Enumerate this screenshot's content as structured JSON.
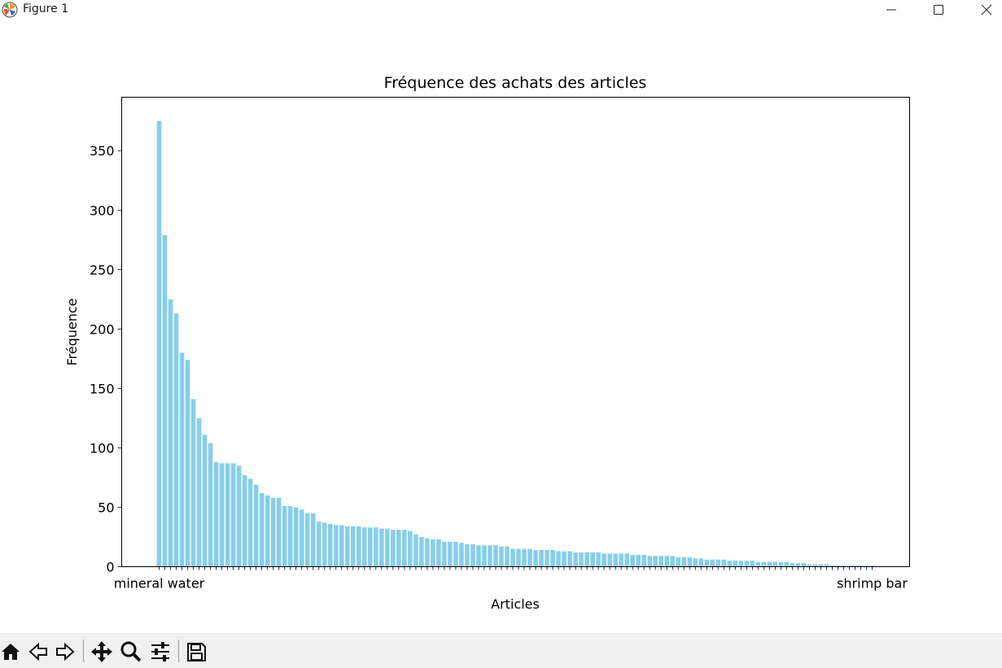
{
  "window": {
    "title": "Figure 1",
    "app_icon": "matplotlib-icon",
    "controls": [
      "minimize-icon",
      "maximize-icon",
      "close-icon"
    ]
  },
  "toolbar": {
    "buttons": [
      "home-icon",
      "back-icon",
      "forward-icon",
      "pan-icon",
      "zoom-icon",
      "configure-subplots-icon",
      "save-icon"
    ]
  },
  "chart_data": {
    "type": "bar",
    "title": "Fréquence des achats des articles",
    "xlabel": "Articles",
    "ylabel": "Fréquence",
    "ylim": [
      0,
      395
    ],
    "yticks": [
      0,
      50,
      100,
      150,
      200,
      250,
      300,
      350
    ],
    "bar_color": "#87ceeb",
    "grid": false,
    "legend": "none",
    "first_category": "mineral water",
    "last_category": "shrimp bar",
    "values": [
      375,
      279,
      225,
      213,
      180,
      174,
      141,
      125,
      111,
      104,
      88,
      87,
      87,
      87,
      85,
      77,
      74,
      69,
      62,
      60,
      58,
      58,
      51,
      51,
      50,
      48,
      45,
      45,
      38,
      37,
      36,
      35,
      35,
      34,
      34,
      34,
      33,
      33,
      33,
      32,
      32,
      31,
      31,
      31,
      30,
      27,
      25,
      24,
      23,
      23,
      21,
      21,
      21,
      20,
      19,
      19,
      18,
      18,
      18,
      18,
      17,
      17,
      15,
      15,
      15,
      15,
      14,
      14,
      14,
      14,
      13,
      13,
      13,
      12,
      12,
      12,
      12,
      12,
      11,
      11,
      11,
      11,
      11,
      10,
      10,
      10,
      9,
      9,
      9,
      9,
      9,
      8,
      8,
      8,
      7,
      7,
      6,
      6,
      6,
      6,
      5,
      5,
      5,
      5,
      5,
      4,
      4,
      4,
      4,
      4,
      4,
      3,
      3,
      3,
      2,
      2,
      2,
      2,
      1,
      1,
      1,
      1,
      1,
      1,
      1,
      1
    ]
  }
}
